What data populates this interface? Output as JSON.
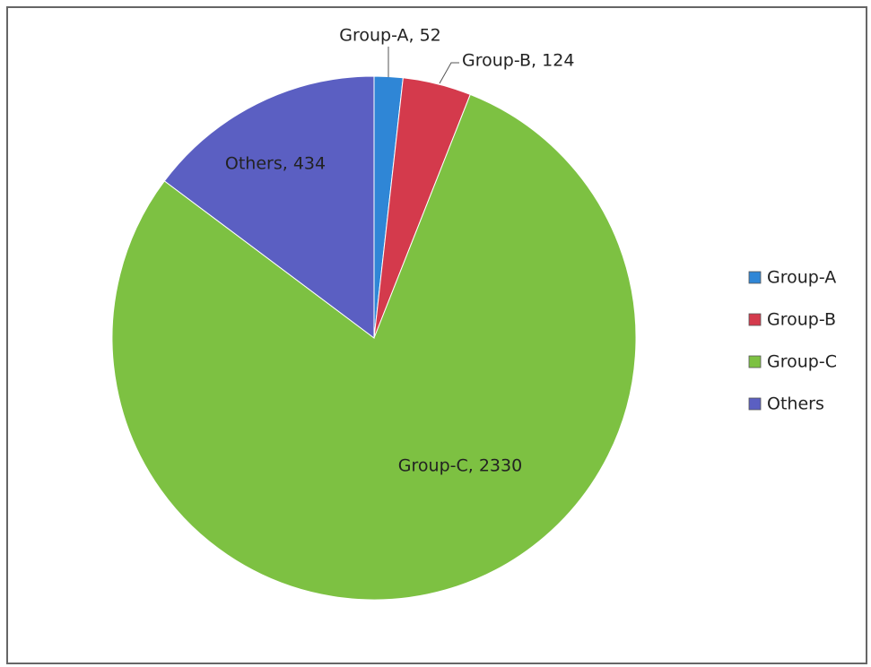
{
  "chart_data": {
    "type": "pie",
    "categories": [
      "Group-A",
      "Group-B",
      "Group-C",
      "Others"
    ],
    "values": [
      52,
      124,
      2330,
      434
    ],
    "value_labels": [
      "Group-A, 52",
      "Group-B, 124",
      "Group-C, 2330",
      "Others, 434"
    ],
    "colors": [
      "#2f86d6",
      "#d43a4c",
      "#7dc142",
      "#5b5fc2"
    ],
    "legend": "right"
  }
}
